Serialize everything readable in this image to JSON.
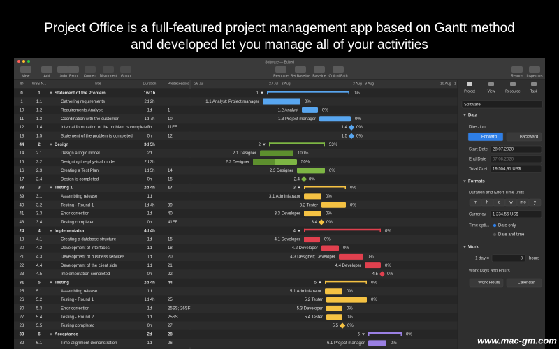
{
  "headline": {
    "line1": "Project Office is a full-featured project management app based on Gantt method",
    "line2": "and developed  let you manage all of your activities"
  },
  "window": {
    "title": "Software — Edited"
  },
  "toolbar": [
    "View",
    "Add",
    "Undo",
    "Redo",
    "Connect",
    "Disconnect",
    "Group",
    "Resource",
    "Set Baseline",
    "Baseline",
    "Critical Path",
    "Reports",
    "Inspectors"
  ],
  "table": {
    "columns": [
      "ID",
      "WBS N...",
      "Title",
      "Duration",
      "Predecessors"
    ],
    "rows": [
      {
        "id": "0",
        "wbs": "1",
        "title": "Statement of the Problem",
        "duration": "1w 1h",
        "bar": "1",
        "pct": "0%"
      },
      {
        "id": "1",
        "wbs": "1.1",
        "title": "Gathering requirements",
        "duration": "2d 2h",
        "bar": "1.1  Analyst; Project manager",
        "pct": "0%"
      },
      {
        "id": "10",
        "wbs": "1.2",
        "title": "Requirements Analysis",
        "duration": "1d",
        "pred": "1",
        "bar": "1.2  Analyst",
        "pct": "0%"
      },
      {
        "id": "11",
        "wbs": "1.3",
        "title": "Coordination with the customer",
        "duration": "1d 7h",
        "pred": "10",
        "bar": "1.3  Project manager",
        "pct": "0%"
      },
      {
        "id": "12",
        "wbs": "1.4",
        "title": "Internal formulation of the problem is completed",
        "duration": "0h",
        "pred": "11FF",
        "bar": "1.4",
        "pct": "0%"
      },
      {
        "id": "13",
        "wbs": "1.5",
        "title": "Statement of the problem is completed",
        "duration": "0h",
        "pred": "12",
        "bar": "1.5",
        "pct": "0%"
      },
      {
        "id": "44",
        "wbs": "2",
        "title": "Design",
        "duration": "3d 5h",
        "bar": "2",
        "pct": "53%"
      },
      {
        "id": "14",
        "wbs": "2.1",
        "title": "Design a logic model",
        "duration": "2d",
        "bar": "2.1  Designer",
        "pct": "100%"
      },
      {
        "id": "15",
        "wbs": "2.2",
        "title": "Designing the physical model",
        "duration": "2d 3h",
        "bar": "2.2  Designer",
        "pct": "50%"
      },
      {
        "id": "16",
        "wbs": "2.3",
        "title": "Creating a Test Plan",
        "duration": "1d 5h",
        "pred": "14",
        "bar": "2.3  Designer",
        "pct": "0%"
      },
      {
        "id": "17",
        "wbs": "2.4",
        "title": "Design is completed",
        "duration": "0h",
        "pred": "15",
        "bar": "2.4",
        "pct": "0%"
      },
      {
        "id": "38",
        "wbs": "3",
        "title": "Testing 1",
        "duration": "2d 4h",
        "pred": "17",
        "bar": "3",
        "pct": "0%"
      },
      {
        "id": "39",
        "wbs": "3.1",
        "title": "Assembling release",
        "duration": "1d",
        "bar": "3.1  Administrator",
        "pct": "0%"
      },
      {
        "id": "40",
        "wbs": "3.2",
        "title": "Testing - Round 1",
        "duration": "1d 4h",
        "pred": "39",
        "bar": "3.2  Tester",
        "pct": "0%"
      },
      {
        "id": "41",
        "wbs": "3.3",
        "title": "Error correction",
        "duration": "1d",
        "pred": "40",
        "bar": "3.3  Developer",
        "pct": "0%"
      },
      {
        "id": "43",
        "wbs": "3.4",
        "title": "Testing completed",
        "duration": "0h",
        "pred": "41FF",
        "bar": "3.4",
        "pct": "0%"
      },
      {
        "id": "24",
        "wbs": "4",
        "title": "Implementation",
        "duration": "4d 4h",
        "bar": "4",
        "pct": "0%"
      },
      {
        "id": "18",
        "wbs": "4.1",
        "title": "Creating a database structure",
        "duration": "1d",
        "pred": "15",
        "bar": "4.1  Developer",
        "pct": "0%"
      },
      {
        "id": "20",
        "wbs": "4.2",
        "title": "Development of interfaces",
        "duration": "1d",
        "pred": "18",
        "bar": "4.2  Developer",
        "pct": "0%"
      },
      {
        "id": "21",
        "wbs": "4.3",
        "title": "Development of business services",
        "duration": "1d",
        "pred": "20",
        "bar": "4.3  Designer; Developer",
        "pct": "0%"
      },
      {
        "id": "22",
        "wbs": "4.4",
        "title": "Development of the client side",
        "duration": "1d",
        "pred": "21",
        "bar": "4.4  Developer",
        "pct": "0%"
      },
      {
        "id": "23",
        "wbs": "4.5",
        "title": "Implementation completed",
        "duration": "0h",
        "pred": "22",
        "bar": "4.5",
        "pct": "0%"
      },
      {
        "id": "31",
        "wbs": "5",
        "title": "Testing",
        "duration": "2d 4h",
        "pred": "44",
        "bar": "5",
        "pct": "0%"
      },
      {
        "id": "25",
        "wbs": "5.1",
        "title": "Assembling release",
        "duration": "1d",
        "bar": "5.1  Administrator",
        "pct": "0%"
      },
      {
        "id": "26",
        "wbs": "5.2",
        "title": "Testing - Round 1",
        "duration": "1d 4h",
        "pred": "25",
        "bar": "5.2  Tester",
        "pct": "0%"
      },
      {
        "id": "30",
        "wbs": "5.3",
        "title": "Error correction",
        "duration": "1d",
        "pred": "25SS; 26SF",
        "bar": "5.3  Developer",
        "pct": "0%"
      },
      {
        "id": "27",
        "wbs": "5.4",
        "title": "Testing - Round 2",
        "duration": "1d",
        "pred": "25SS",
        "bar": "5.4  Tester",
        "pct": "0%"
      },
      {
        "id": "28",
        "wbs": "5.5",
        "title": "Testing completed",
        "duration": "0h",
        "pred": "27",
        "bar": "5.5",
        "pct": "0%"
      },
      {
        "id": "33",
        "wbs": "6",
        "title": "Acceptance",
        "duration": "2d",
        "pred": "28",
        "bar": "6",
        "pct": "0%"
      },
      {
        "id": "32",
        "wbs": "6.1",
        "title": "Time alignment demonstration",
        "duration": "1d",
        "pred": "26",
        "bar": "6.1  Project manager",
        "pct": "0%"
      }
    ]
  },
  "gantt": {
    "weeks": [
      "- 26 Jul",
      "27 Jul - 2 Aug",
      "3 Aug - 9 Aug",
      "10 Aug - 1"
    ]
  },
  "inspector": {
    "tabs": [
      "Project",
      "View",
      "Resource",
      "Task"
    ],
    "name": "Software",
    "data": "Data",
    "direction": "Direction",
    "forward": "Forward",
    "backward": "Backward",
    "start_label": "Start Date",
    "start": "28.07.2020",
    "end_label": "End Date",
    "end": "07.08.2020",
    "cost_label": "Total Cost",
    "cost": "19.504,91 US$",
    "formats": "Formats",
    "units_label": "Duration and Effort Time units",
    "units": [
      "m",
      "h",
      "d",
      "w",
      "mo",
      "y"
    ],
    "currency_label": "Currency",
    "currency": "1 234.56 US$",
    "time_label": "Time opti...",
    "date_only": "Date only",
    "date_time": "Date and time",
    "work": "Work",
    "day_label": "1 day =",
    "hours_value": "8",
    "hours_unit": "hours",
    "workdays": "Work Days and Hours",
    "work_hours": "Work Hours",
    "calendar": "Calendar"
  },
  "watermark": "www.mac-gm.com"
}
